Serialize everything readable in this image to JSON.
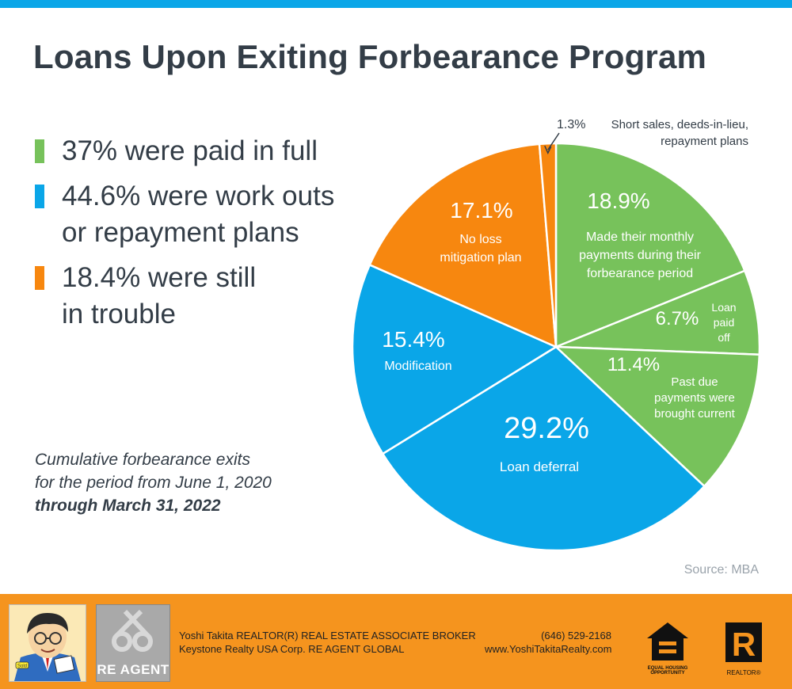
{
  "title": "Loans Upon Exiting Forbearance Program",
  "bullets": [
    {
      "text": "37% were paid in full",
      "color": "#77c25b"
    },
    {
      "text": "44.6% were work outs\nor repayment plans",
      "color": "#0aa6e8"
    },
    {
      "text": "18.4% were still\n in trouble",
      "color": "#f7870f"
    }
  ],
  "note": {
    "line1": "Cumulative forbearance exits",
    "line2": "for the period from June 1, 2020",
    "line3": "through March 31, 2022"
  },
  "source": "Source: MBA",
  "chart_data": {
    "type": "pie",
    "start": "12 o'clock",
    "direction": "clockwise",
    "slices": [
      {
        "value": 18.9,
        "pct": "18.9%",
        "label": [
          "Made their monthly",
          "payments during their",
          "forbearance period"
        ],
        "color": "#77c25b"
      },
      {
        "value": 6.7,
        "pct": "6.7%",
        "label": [
          "Loan",
          "paid",
          "off"
        ],
        "color": "#77c25b"
      },
      {
        "value": 11.4,
        "pct": "11.4%",
        "label": [
          "Past due",
          "payments were",
          "brought current"
        ],
        "color": "#77c25b"
      },
      {
        "value": 29.2,
        "pct": "29.2%",
        "label": [
          "Loan deferral"
        ],
        "color": "#0aa6e8"
      },
      {
        "value": 15.4,
        "pct": "15.4%",
        "label": [
          "Modification"
        ],
        "color": "#0aa6e8"
      },
      {
        "value": 17.1,
        "pct": "17.1%",
        "label": [
          "No loss",
          "mitigation plan"
        ],
        "color": "#f7870f"
      },
      {
        "value": 1.3,
        "pct": "1.3%",
        "label": [
          "Short sales, deeds-in-lieu,",
          "repayment plans"
        ],
        "color": "#f7870f"
      }
    ]
  },
  "footer": {
    "agent_line1": "Yoshi Takita REALTOR(R) REAL ESTATE ASSOCIATE BROKER",
    "agent_line2": "Keystone Realty USA Corp.  RE AGENT GLOBAL",
    "phone": "(646) 529-2168",
    "website": "www.YoshiTakitaRealty.com",
    "logo_text": "RE AGENT",
    "eho_text": "EQUAL HOUSING OPPORTUNITY",
    "realtor_text": "REALTOR®",
    "badge_text": "Sold"
  }
}
